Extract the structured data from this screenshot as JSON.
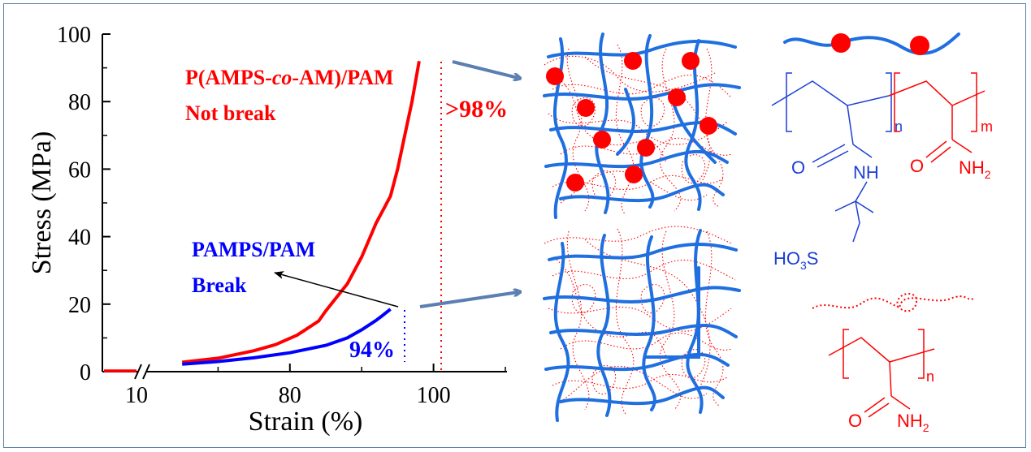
{
  "chart_data": {
    "type": "line",
    "xlabel": "Strain (%)",
    "ylabel": "Stress (MPa)",
    "xlim": [
      60,
      110
    ],
    "ylim": [
      0,
      100
    ],
    "x_axis_break": true,
    "y_ticks": [
      "0",
      "20",
      "40",
      "60",
      "80",
      "100"
    ],
    "x_ticks": [
      "10",
      "80",
      "100"
    ],
    "series": [
      {
        "name": "P(AMPS-co-AM)/PAM",
        "color": "#ff0000",
        "label_line1": "P(AMPS-co-AM)/PAM",
        "label_line2": "Not break",
        "end_label": ">98%",
        "points": [
          [
            65,
            2.8
          ],
          [
            70,
            4.0
          ],
          [
            75,
            6.2
          ],
          [
            78,
            8.0
          ],
          [
            81,
            10.8
          ],
          [
            84,
            15.0
          ],
          [
            85,
            18.0
          ],
          [
            88,
            26.0
          ],
          [
            90,
            34.0
          ],
          [
            92,
            44.0
          ],
          [
            94,
            52.0
          ],
          [
            95,
            60.0
          ],
          [
            96,
            70.0
          ],
          [
            97,
            80.0
          ],
          [
            98,
            92.0
          ]
        ]
      },
      {
        "name": "PAMPS/PAM",
        "color": "#0000ff",
        "label_line1": "PAMPS/PAM",
        "label_line2": "Break",
        "end_label": "94%",
        "points": [
          [
            65,
            2.2
          ],
          [
            70,
            3.0
          ],
          [
            75,
            4.1
          ],
          [
            80,
            5.6
          ],
          [
            85,
            7.8
          ],
          [
            88,
            10.0
          ],
          [
            90,
            12.4
          ],
          [
            92,
            15.2
          ],
          [
            93,
            16.8
          ],
          [
            94,
            18.5
          ]
        ]
      }
    ]
  },
  "diagram": {
    "co_chain_subscripts": [
      "n",
      "m"
    ],
    "co_o1": "O",
    "co_nh": "NH",
    "co_o2": "O",
    "co_nh2": "NH",
    "pam_subscript": "n",
    "pam_o": "O",
    "pam_nh2": "NH",
    "hso3_main": "HO",
    "hso3_sub": "3",
    "hso3_s": "S",
    "two": "2",
    "colors": {
      "network_blue": "#1f6fe0",
      "sphere_red": "#ff0000",
      "arrow_steel": "#5b7fb0",
      "chem_blue": "#1c3fd6"
    }
  }
}
